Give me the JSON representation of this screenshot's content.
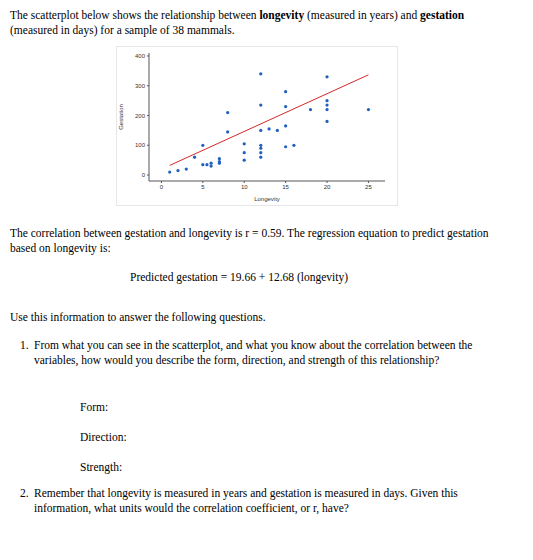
{
  "intro": [
    "The scatterplot below shows the relationship between ",
    "longevity",
    " (measured in years) and ",
    "gestation",
    " (measured in days) for a sample of 38 mammals."
  ],
  "chart_data": {
    "type": "scatter",
    "x_label": "Longevity",
    "y_label": "Gestation",
    "x": [
      1,
      3,
      4,
      5,
      5,
      5.5,
      6,
      7,
      7,
      7,
      8,
      8,
      10,
      10,
      10,
      12,
      12,
      12,
      12,
      12,
      12,
      12,
      14,
      15,
      15,
      15,
      15,
      16,
      18,
      20,
      20,
      20,
      20,
      20,
      25,
      2,
      6,
      13
    ],
    "values": [
      10,
      20,
      60,
      100,
      35,
      35,
      30,
      45,
      55,
      40,
      210,
      145,
      105,
      75,
      50,
      340,
      235,
      150,
      100,
      90,
      75,
      60,
      150,
      280,
      230,
      165,
      95,
      100,
      220,
      330,
      250,
      235,
      220,
      180,
      220,
      15,
      40,
      155
    ],
    "color": "#1f5fbf",
    "marker": "circle",
    "xlim": [
      -1.5,
      27
    ],
    "ylim": [
      -20,
      410
    ],
    "xticks": [
      0,
      5,
      10,
      15,
      20,
      25
    ],
    "yticks": [
      0,
      100,
      200,
      300,
      400
    ],
    "regression": {
      "intercept": 19.66,
      "slope": 12.68,
      "x_range": [
        1,
        25
      ],
      "color": "#d62728"
    }
  },
  "correlation": "The correlation between gestation and longevity is r = 0.59. The regression equation to predict gestation based on longevity is:",
  "equation": "Predicted gestation = 19.66 + 12.68 (longevity)",
  "instruction": "Use this information to answer the following questions.",
  "questions": [
    {
      "number": "1.",
      "text": "From what you can see in the scatterplot, and what you know about the correlation between the variables, how would you describe the form, direction, and strength of this relationship?",
      "blanks": [
        "Form:",
        "Direction:",
        "Strength:"
      ]
    },
    {
      "number": "2.",
      "text": "Remember that longevity is measured in years and gestation is measured in days. Given this information, what units would the correlation coefficient, or r, have?"
    }
  ]
}
